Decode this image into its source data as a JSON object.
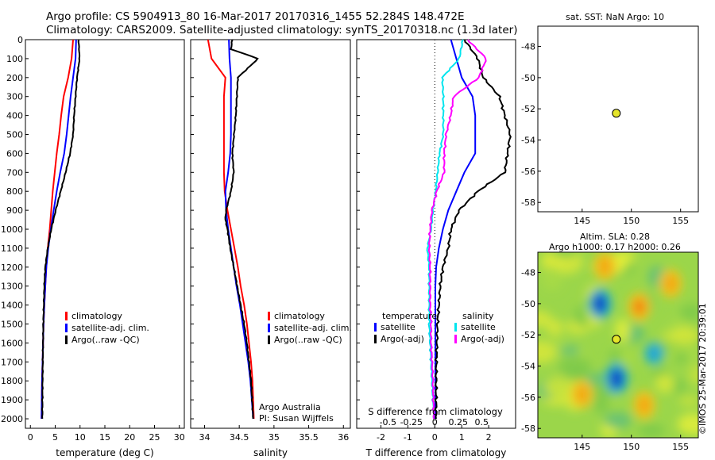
{
  "header": {
    "line1": "Argo profile: CS 5904913_80 16-Mar-2017 20170316_1455 52.284S 148.472E",
    "line2": "Climatology: CARS2009. Satellite-adjusted climatology: synTS_20170318.nc (1.3d later)"
  },
  "right_panel": {
    "sst_title": "sat. SST: NaN Argo: 10",
    "sla_title1": "Altim. SLA: 0.28",
    "sla_title2": "Argo h1000: 0.17 h2000: 0.26",
    "watermark": "©IMOS 25-Mar-2017 20:39:01"
  },
  "colors": {
    "climatology": "#ff0000",
    "satellite": "#0000ff",
    "argo": "#000000",
    "sal_satellite": "#00e5ee",
    "sal_argo": "#ff00ff",
    "float_marker": "#e5e52a"
  },
  "chart_data": [
    {
      "id": "temperature",
      "type": "line",
      "xlabel": "temperature (deg C)",
      "ylabel": "",
      "xlim": [
        -1,
        31
      ],
      "ylim": [
        2050,
        0
      ],
      "xticks": [
        "0",
        "5",
        "10",
        "15",
        "20",
        "25",
        "30"
      ],
      "xtick_values": [
        0,
        5,
        10,
        15,
        20,
        25,
        30
      ],
      "yticks": [
        "0",
        "100",
        "200",
        "300",
        "400",
        "500",
        "600",
        "700",
        "800",
        "900",
        "1000",
        "1100",
        "1200",
        "1300",
        "1400",
        "1500",
        "1600",
        "1700",
        "1800",
        "1900",
        "2000"
      ],
      "ytick_values": [
        0,
        100,
        200,
        300,
        400,
        500,
        600,
        700,
        800,
        900,
        1000,
        1100,
        1200,
        1300,
        1400,
        1500,
        1600,
        1700,
        1800,
        1900,
        2000
      ],
      "legend": [
        "climatology",
        "satellite-adj. clim.",
        "Argo(..raw -QC)"
      ],
      "series": [
        {
          "name": "climatology",
          "x": [
            8.6,
            8.3,
            7.6,
            6.7,
            6.2,
            5.8,
            5.3,
            4.9,
            4.5,
            4.2,
            3.9,
            3.5,
            3.2,
            3.0,
            2.8,
            2.65,
            2.55,
            2.45,
            2.35,
            2.25
          ],
          "y": [
            0,
            100,
            200,
            300,
            400,
            500,
            600,
            700,
            800,
            900,
            1000,
            1100,
            1200,
            1300,
            1400,
            1500,
            1600,
            1700,
            1800,
            2000
          ]
        },
        {
          "name": "satellite-adj. clim.",
          "x": [
            9.2,
            9.1,
            8.6,
            8.1,
            7.7,
            7.3,
            6.8,
            6.0,
            5.3,
            4.7,
            4.1,
            3.6,
            3.2,
            3.0,
            2.8,
            2.65,
            2.55,
            2.45,
            2.35,
            2.25
          ],
          "y": [
            0,
            100,
            200,
            300,
            400,
            500,
            600,
            700,
            800,
            900,
            1000,
            1100,
            1200,
            1300,
            1400,
            1500,
            1600,
            1700,
            1800,
            2000
          ]
        },
        {
          "name": "Argo(..raw -QC)",
          "x": [
            9.7,
            9.9,
            9.4,
            9.1,
            8.8,
            8.6,
            8.0,
            7.1,
            6.1,
            5.1,
            4.2,
            3.5,
            3.0,
            2.8,
            2.7,
            2.6,
            2.55,
            2.5,
            2.45,
            2.4
          ],
          "y": [
            0,
            100,
            200,
            300,
            400,
            500,
            600,
            700,
            800,
            900,
            1000,
            1100,
            1200,
            1300,
            1400,
            1500,
            1600,
            1700,
            1800,
            2000
          ]
        }
      ]
    },
    {
      "id": "salinity",
      "type": "line",
      "xlabel": "salinity",
      "xlim": [
        33.8,
        36.1
      ],
      "ylim": [
        2050,
        0
      ],
      "xticks": [
        "34",
        "34.5",
        "35",
        "35.5",
        "36"
      ],
      "xtick_values": [
        34,
        34.5,
        35,
        35.5,
        36
      ],
      "legend": [
        "climatology",
        "satellite-adj. clim.",
        "Argo(..raw -QC)"
      ],
      "annotation_lines": [
        "Argo Australia",
        "PI: Susan Wijffels"
      ],
      "series": [
        {
          "name": "climatology",
          "x": [
            34.05,
            34.1,
            34.3,
            34.28,
            34.28,
            34.28,
            34.28,
            34.28,
            34.29,
            34.33,
            34.38,
            34.43,
            34.48,
            34.52,
            34.57,
            34.61,
            34.64,
            34.67,
            34.69,
            34.71
          ],
          "y": [
            0,
            100,
            200,
            300,
            400,
            500,
            600,
            700,
            800,
            900,
            1000,
            1100,
            1200,
            1300,
            1400,
            1500,
            1600,
            1700,
            1800,
            2000
          ]
        },
        {
          "name": "satellite-adj. clim.",
          "x": [
            34.35,
            34.36,
            34.38,
            34.38,
            34.38,
            34.38,
            34.37,
            34.34,
            34.3,
            34.31,
            34.34,
            34.38,
            34.42,
            34.46,
            34.51,
            34.55,
            34.59,
            34.63,
            34.66,
            34.7
          ],
          "y": [
            0,
            100,
            200,
            300,
            400,
            500,
            600,
            700,
            800,
            900,
            1000,
            1100,
            1200,
            1300,
            1400,
            1500,
            1600,
            1700,
            1800,
            2000
          ]
        },
        {
          "name": "Argo(..raw -QC)",
          "x": [
            34.4,
            34.38,
            34.77,
            34.48,
            34.45,
            34.4,
            34.42,
            34.38,
            34.31,
            34.3,
            34.33,
            34.37,
            34.42,
            34.47,
            34.52,
            34.57,
            34.61,
            34.64,
            34.67,
            34.7
          ],
          "y": [
            0,
            50,
            100,
            200,
            400,
            600,
            700,
            800,
            900,
            950,
            1000,
            1100,
            1200,
            1300,
            1400,
            1500,
            1600,
            1700,
            1800,
            2000
          ]
        }
      ]
    },
    {
      "id": "difference",
      "type": "line",
      "xlabel": "T difference from climatology",
      "xlabel_top": "S difference from climatology",
      "xlim": [
        -2.9,
        3.0
      ],
      "ylim": [
        2050,
        0
      ],
      "xticks": [
        "-2",
        "-1",
        "0",
        "1",
        "2"
      ],
      "xtick_values": [
        -2,
        -1,
        0,
        1,
        2
      ],
      "s_ticks": [
        "-0.5",
        "-0.25",
        "0",
        "0.25",
        "0.5"
      ],
      "s_tick_values": [
        -0.5,
        -0.25,
        0,
        0.25,
        0.5
      ],
      "legend_temperature_title": "temperature",
      "legend_salinity_title": "salinity",
      "legend": [
        "satellite",
        "Argo(-adj)",
        "satellite",
        "Argo(-adj)"
      ],
      "series": [
        {
          "name": "temperature satellite",
          "x": [
            0.6,
            0.8,
            1.0,
            1.4,
            1.5,
            1.5,
            1.5,
            1.1,
            0.8,
            0.5,
            0.3,
            0.15,
            0.05,
            0.02,
            0.02,
            0.02,
            0.02,
            0.02,
            0.02,
            0.02
          ],
          "y": [
            0,
            100,
            200,
            300,
            400,
            500,
            600,
            700,
            800,
            900,
            1000,
            1100,
            1200,
            1300,
            1400,
            1500,
            1600,
            1700,
            1800,
            2000
          ]
        },
        {
          "name": "temperature Argo(-adj)",
          "x": [
            1.1,
            1.6,
            1.8,
            2.4,
            2.6,
            2.8,
            2.7,
            2.6,
            1.6,
            0.9,
            0.6,
            0.5,
            0.3,
            0.2,
            0.15,
            0.1,
            0.08,
            0.06,
            0.05,
            0.05
          ],
          "y": [
            0,
            100,
            200,
            300,
            400,
            500,
            600,
            700,
            800,
            900,
            1000,
            1100,
            1200,
            1300,
            1400,
            1500,
            1600,
            1700,
            1800,
            2000
          ]
        },
        {
          "name": "salinity satellite",
          "x": [
            0.3,
            0.26,
            0.08,
            0.09,
            0.09,
            0.09,
            0.05,
            0.03,
            0.01,
            -0.02,
            -0.04,
            -0.08,
            -0.06,
            -0.06,
            -0.06,
            -0.06,
            -0.05,
            -0.04,
            -0.03,
            -0.01
          ],
          "y": [
            0,
            100,
            200,
            300,
            400,
            500,
            600,
            700,
            800,
            900,
            1000,
            1100,
            1200,
            1300,
            1400,
            1500,
            1600,
            1700,
            1800,
            2000
          ]
        },
        {
          "name": "salinity Argo(-adj)",
          "x": [
            0.35,
            0.55,
            0.47,
            0.2,
            0.17,
            0.12,
            0.1,
            0.1,
            0.02,
            -0.03,
            -0.05,
            -0.06,
            -0.05,
            -0.05,
            -0.05,
            -0.04,
            -0.04,
            -0.03,
            -0.02,
            -0.01
          ],
          "y": [
            0,
            100,
            200,
            300,
            400,
            500,
            600,
            700,
            800,
            900,
            1000,
            1100,
            1200,
            1300,
            1400,
            1500,
            1600,
            1700,
            1800,
            2000
          ]
        }
      ]
    },
    {
      "id": "sst_map",
      "type": "scatter",
      "xlim": [
        140.5,
        156.8
      ],
      "ylim": [
        -58.6,
        -46.7
      ],
      "xticks": [
        "145",
        "150",
        "155"
      ],
      "xtick_values": [
        145,
        150,
        155
      ],
      "yticks": [
        "-48",
        "-50",
        "-52",
        "-54",
        "-56",
        "-58"
      ],
      "ytick_values": [
        -48,
        -50,
        -52,
        -54,
        -56,
        -58
      ],
      "points": [
        {
          "lon": 148.472,
          "lat": -52.284
        }
      ]
    },
    {
      "id": "sla_map",
      "type": "heatmap",
      "xlim": [
        140.5,
        156.8
      ],
      "ylim": [
        -58.6,
        -46.7
      ],
      "xticks": [
        "145",
        "150",
        "155"
      ],
      "xtick_values": [
        145,
        150,
        155
      ],
      "yticks": [
        "-48",
        "-50",
        "-52",
        "-54",
        "-56",
        "-58"
      ],
      "ytick_values": [
        -48,
        -50,
        -52,
        -54,
        -56,
        -58
      ],
      "points": [
        {
          "lon": 148.472,
          "lat": -52.284
        }
      ],
      "features": [
        {
          "lon": 146.8,
          "lat": -50.0,
          "value": -1.0
        },
        {
          "lon": 148.5,
          "lat": -54.8,
          "value": -1.0
        },
        {
          "lon": 152.3,
          "lat": -53.2,
          "value": -0.6
        },
        {
          "lon": 147.3,
          "lat": -47.6,
          "value": 0.4
        },
        {
          "lon": 150.8,
          "lat": -50.2,
          "value": 0.7
        },
        {
          "lon": 145.0,
          "lat": -55.8,
          "value": 0.3
        },
        {
          "lon": 154.0,
          "lat": -48.7,
          "value": 0.3
        },
        {
          "lon": 151.3,
          "lat": -56.5,
          "value": 0.3
        }
      ]
    }
  ]
}
